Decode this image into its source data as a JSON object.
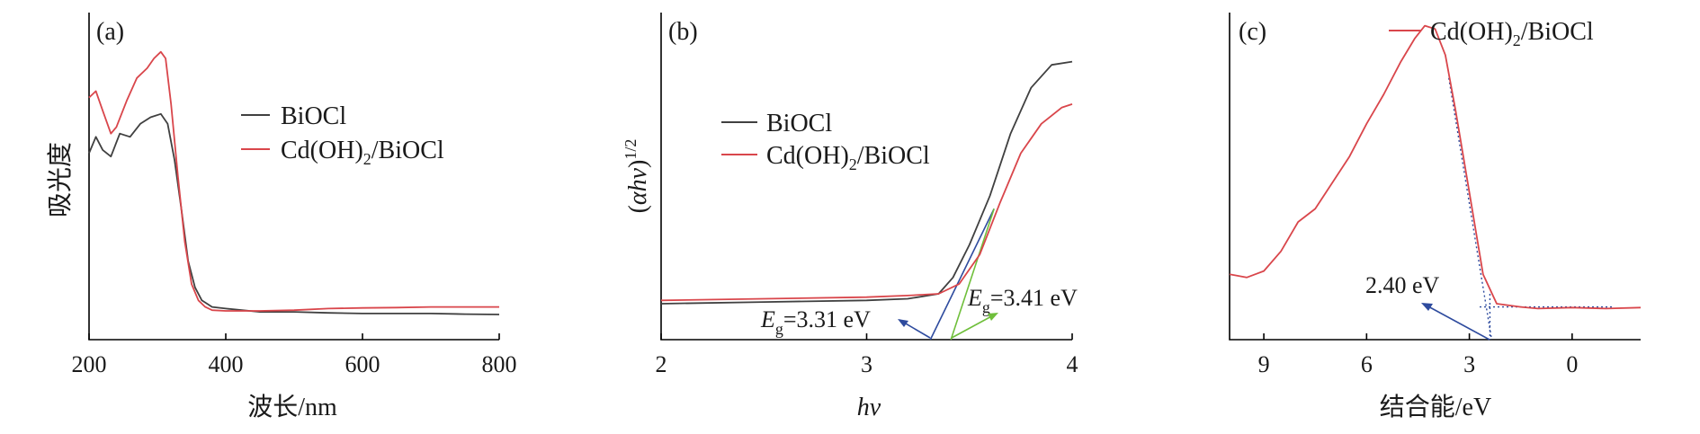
{
  "colors": {
    "BiOCl": "#404040",
    "Cd(OH)2/BiOCl": "#d9464b",
    "blue_fit": "#2e4b9e",
    "green_fit": "#6fbf3b"
  },
  "chart_data": [
    {
      "type": "line",
      "panel": "(a)",
      "xlabel": "波长/nm",
      "ylabel": "吸光度",
      "xlim": [
        200,
        800
      ],
      "ylim": [
        0,
        1.0
      ],
      "xticks": [
        200,
        400,
        600,
        800
      ],
      "xtick_labels": [
        "200",
        "400",
        "600",
        "800"
      ],
      "legend": [
        "BiOCl",
        "Cd(OH)2/BiOCl"
      ],
      "legend_position": "upper-center",
      "series": [
        {
          "name": "BiOCl",
          "color_key": "BiOCl",
          "x": [
            200,
            210,
            220,
            232,
            245,
            260,
            275,
            290,
            305,
            315,
            325,
            335,
            345,
            355,
            365,
            380,
            400,
            450,
            500,
            550,
            600,
            650,
            700,
            750,
            800
          ],
          "y": [
            0.57,
            0.62,
            0.58,
            0.56,
            0.63,
            0.62,
            0.66,
            0.68,
            0.69,
            0.66,
            0.55,
            0.4,
            0.24,
            0.16,
            0.12,
            0.1,
            0.095,
            0.085,
            0.085,
            0.082,
            0.08,
            0.08,
            0.08,
            0.078,
            0.077
          ]
        },
        {
          "name": "Cd(OH)2/BiOCl",
          "color_key": "Cd(OH)2/BiOCl",
          "x": [
            200,
            210,
            220,
            232,
            240,
            255,
            270,
            285,
            295,
            305,
            312,
            320,
            330,
            340,
            350,
            360,
            370,
            380,
            400,
            450,
            500,
            550,
            600,
            650,
            700,
            750,
            800
          ],
          "y": [
            0.74,
            0.76,
            0.7,
            0.63,
            0.65,
            0.73,
            0.8,
            0.83,
            0.86,
            0.88,
            0.86,
            0.72,
            0.5,
            0.3,
            0.17,
            0.12,
            0.1,
            0.09,
            0.088,
            0.088,
            0.09,
            0.095,
            0.097,
            0.098,
            0.1,
            0.1,
            0.1
          ]
        }
      ]
    },
    {
      "type": "line",
      "panel": "(b)",
      "xlabel": "hν",
      "ylabel": "(αhν)1/2",
      "xlim": [
        2,
        4
      ],
      "ylim": [
        0,
        1.0
      ],
      "xticks": [
        2,
        3,
        4
      ],
      "xtick_labels": [
        "2",
        "3",
        "4"
      ],
      "legend": [
        "BiOCl",
        "Cd(OH)2/BiOCl"
      ],
      "legend_position": "upper-left",
      "series": [
        {
          "name": "BiOCl",
          "color_key": "BiOCl",
          "x": [
            2.0,
            2.5,
            3.0,
            3.2,
            3.35,
            3.42,
            3.5,
            3.6,
            3.7,
            3.8,
            3.9,
            4.0
          ],
          "y": [
            0.11,
            0.115,
            0.12,
            0.125,
            0.14,
            0.19,
            0.29,
            0.44,
            0.63,
            0.77,
            0.84,
            0.85
          ]
        },
        {
          "name": "Cd(OH)2/BiOCl",
          "color_key": "Cd(OH)2/BiOCl",
          "x": [
            2.0,
            2.5,
            3.0,
            3.2,
            3.35,
            3.45,
            3.55,
            3.65,
            3.75,
            3.85,
            3.95,
            4.0
          ],
          "y": [
            0.12,
            0.125,
            0.13,
            0.135,
            0.14,
            0.17,
            0.26,
            0.42,
            0.57,
            0.66,
            0.71,
            0.72
          ]
        }
      ],
      "annotations": [
        {
          "text_main": "E",
          "text_sub": "g",
          "text_rest": "=3.31 eV",
          "x": 3.31,
          "color_key": "blue_fit"
        },
        {
          "text_main": "E",
          "text_sub": "g",
          "text_rest": "=3.41 eV",
          "x": 3.41,
          "color_key": "green_fit"
        }
      ]
    },
    {
      "type": "line",
      "panel": "(c)",
      "xlabel": "结合能/eV",
      "xlim": [
        10,
        -2
      ],
      "ylim": [
        0,
        1.0
      ],
      "xticks": [
        9,
        6,
        3,
        0
      ],
      "xtick_labels": [
        "9",
        "6",
        "3",
        "0"
      ],
      "legend": [
        "Cd(OH)2/BiOCl"
      ],
      "legend_position": "top-right",
      "series": [
        {
          "name": "Cd(OH)2/BiOCl",
          "color_key": "Cd(OH)2/BiOCl",
          "x": [
            10,
            9.5,
            9,
            8.5,
            8,
            7.5,
            7,
            6.5,
            6,
            5.5,
            5,
            4.6,
            4.3,
            4.0,
            3.7,
            3.4,
            3.0,
            2.6,
            2.2,
            1.5,
            1.0,
            0,
            -1,
            -2
          ],
          "y": [
            0.2,
            0.19,
            0.21,
            0.27,
            0.36,
            0.4,
            0.48,
            0.56,
            0.66,
            0.75,
            0.85,
            0.92,
            0.96,
            0.95,
            0.87,
            0.7,
            0.45,
            0.2,
            0.11,
            0.1,
            0.095,
            0.098,
            0.095,
            0.098
          ]
        }
      ],
      "annotations": [
        {
          "text": "2.40 eV",
          "x": 2.4,
          "color_key": "blue_fit"
        }
      ]
    }
  ]
}
